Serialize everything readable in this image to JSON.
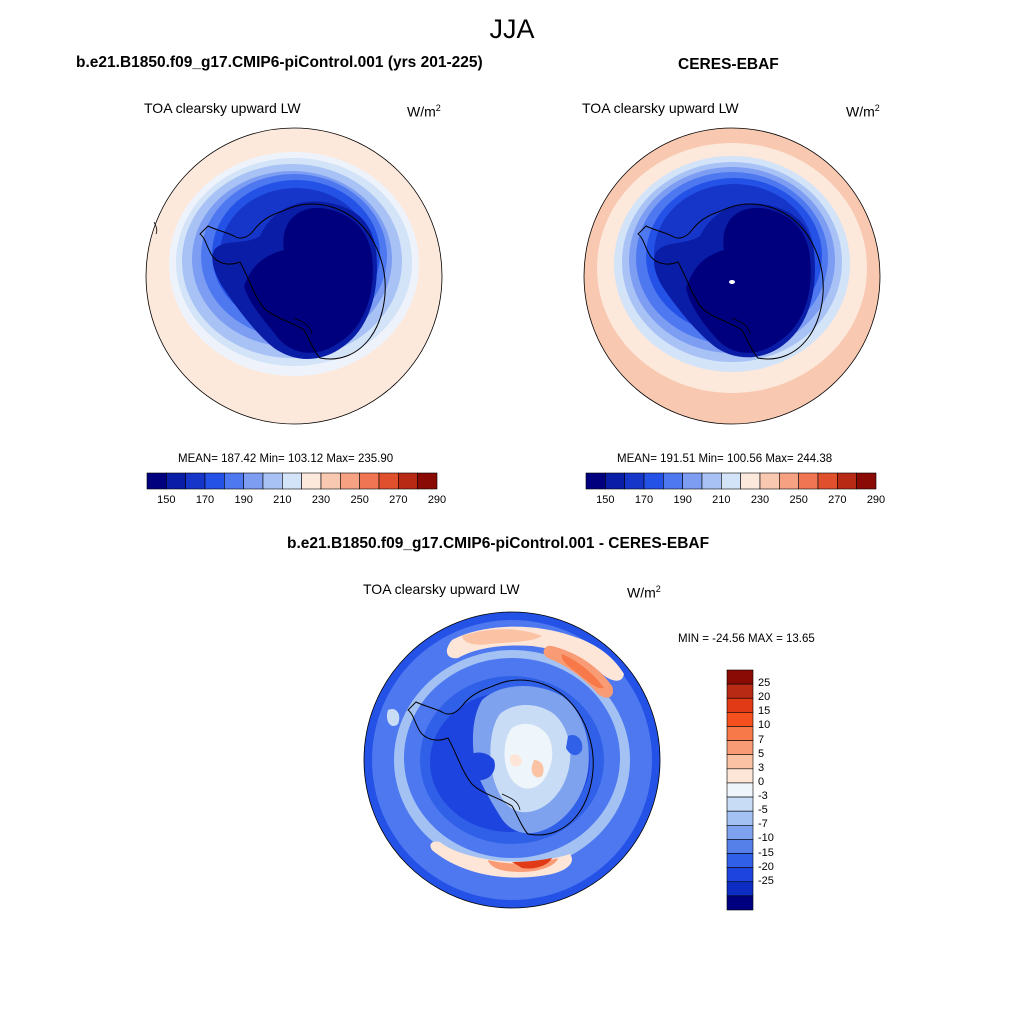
{
  "figure": {
    "title": "JJA"
  },
  "panels": [
    {
      "id": "model",
      "title": "b.e21.B1850.f09_g17.CMIP6-piControl.001 (yrs 201-225)",
      "variable": "TOA clearsky upward LW",
      "units_base": "W/m",
      "units_exp": "2",
      "stats": "MEAN= 187.42  Min= 103.12  Max= 235.90"
    },
    {
      "id": "obs",
      "title": "CERES-EBAF",
      "variable": "TOA clearsky upward LW",
      "units_base": "W/m",
      "units_exp": "2",
      "stats": "MEAN= 191.51  Min= 100.56  Max= 244.38"
    },
    {
      "id": "diff",
      "title": "b.e21.B1850.f09_g17.CMIP6-piControl.001 - CERES-EBAF",
      "variable": "TOA clearsky upward LW",
      "units_base": "W/m",
      "units_exp": "2",
      "stats": "MIN = -24.56 MAX =  13.65"
    }
  ],
  "colorbar_abs": {
    "colors": [
      "#00007f",
      "#0a1da6",
      "#1536c8",
      "#2452e6",
      "#4d78f0",
      "#7d9df3",
      "#a9c2f5",
      "#d3e3f8",
      "#fde8dc",
      "#f9c8b0",
      "#f5a182",
      "#f07653",
      "#e0502d",
      "#b82a14",
      "#8a0b06"
    ],
    "tick_labels": [
      "150",
      "170",
      "190",
      "210",
      "230",
      "250",
      "270",
      "290"
    ]
  },
  "colorbar_diff": {
    "colors": [
      "#8a0b06",
      "#b82a14",
      "#e03a16",
      "#f5501d",
      "#f77848",
      "#f99c76",
      "#fbc2a4",
      "#fde6d8",
      "#eef5fb",
      "#c9dcf6",
      "#a3c1f2",
      "#7ea2ee",
      "#5580ea",
      "#3060e8",
      "#1d44df",
      "#0d2cc4",
      "#00007f"
    ],
    "tick_labels": [
      "25",
      "20",
      "15",
      "10",
      "7",
      "5",
      "3",
      "0",
      "-3",
      "-5",
      "-7",
      "-10",
      "-15",
      "-20",
      "-25"
    ]
  }
}
